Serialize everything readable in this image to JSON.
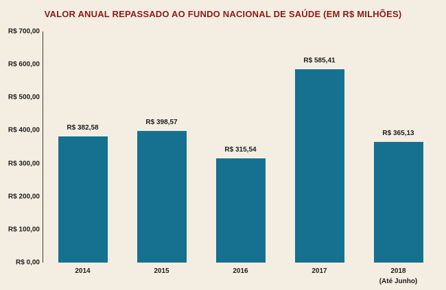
{
  "chart_data": {
    "type": "bar",
    "title": "VALOR ANUAL REPASSADO AO FUNDO NACIONAL DE SAÚDE (EM R$ MILHÕES)",
    "categories": [
      "2014",
      "2015",
      "2016",
      "2017",
      "2018"
    ],
    "category_sublabels": [
      "",
      "",
      "",
      "",
      "(Até Junho)"
    ],
    "values": [
      382.58,
      398.57,
      315.54,
      585.41,
      365.13
    ],
    "value_labels": [
      "R$ 382,58",
      "R$ 398,57",
      "R$ 315,54",
      "R$ 585,41",
      "R$ 365,13"
    ],
    "y_ticks": [
      "R$ 700,00",
      "R$ 600,00",
      "R$ 500,00",
      "R$ 400,00",
      "R$ 300,00",
      "R$ 200,00",
      "R$ 100,00",
      "R$ 0,00"
    ],
    "ylim": [
      0,
      700
    ],
    "grid": "off",
    "legend": "none",
    "bar_color": "#15718f",
    "title_color": "#8e1813",
    "text_color": "#1c1c1c",
    "background": "#f4eee2"
  }
}
